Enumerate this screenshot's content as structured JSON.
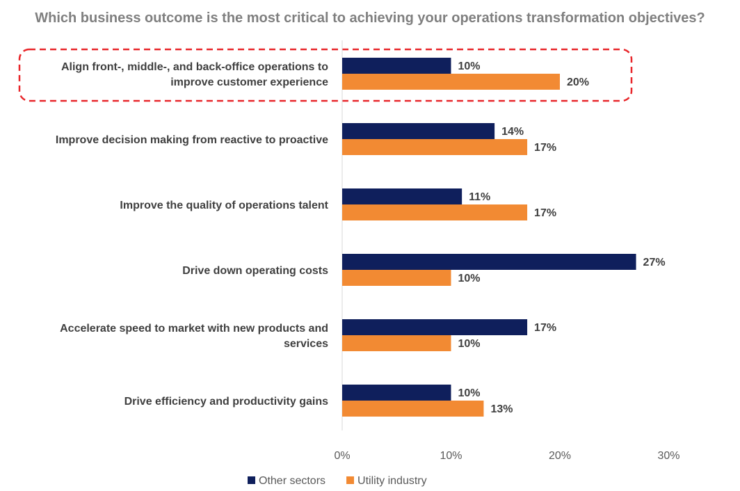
{
  "chart_data": {
    "type": "bar",
    "orientation": "horizontal",
    "title": "Which business outcome is the most critical to achieving your operations transformation objectives?",
    "categories": [
      [
        "Align front-, middle-, and back-office operations to",
        "improve customer experience"
      ],
      [
        "Improve decision making from reactive to proactive"
      ],
      [
        "Improve the quality of operations talent"
      ],
      [
        "Drive down operating costs"
      ],
      [
        "Accelerate speed to market with new products and",
        "services"
      ],
      [
        "Drive efficiency and productivity gains"
      ]
    ],
    "series": [
      {
        "name": "Other sectors",
        "color": "#0f1f5c",
        "values": [
          10,
          14,
          11,
          27,
          17,
          10
        ]
      },
      {
        "name": "Utility industry",
        "color": "#f28a33",
        "values": [
          20,
          17,
          17,
          10,
          10,
          13
        ]
      }
    ],
    "value_suffix": "%",
    "xlim": [
      0,
      30
    ],
    "xticks": [
      "0%",
      "10%",
      "20%",
      "30%"
    ],
    "xtick_values": [
      0,
      10,
      20,
      30
    ],
    "grid": false,
    "legend_position": "bottom",
    "highlight_category_index": 0,
    "highlight_color": "#e8262a"
  }
}
